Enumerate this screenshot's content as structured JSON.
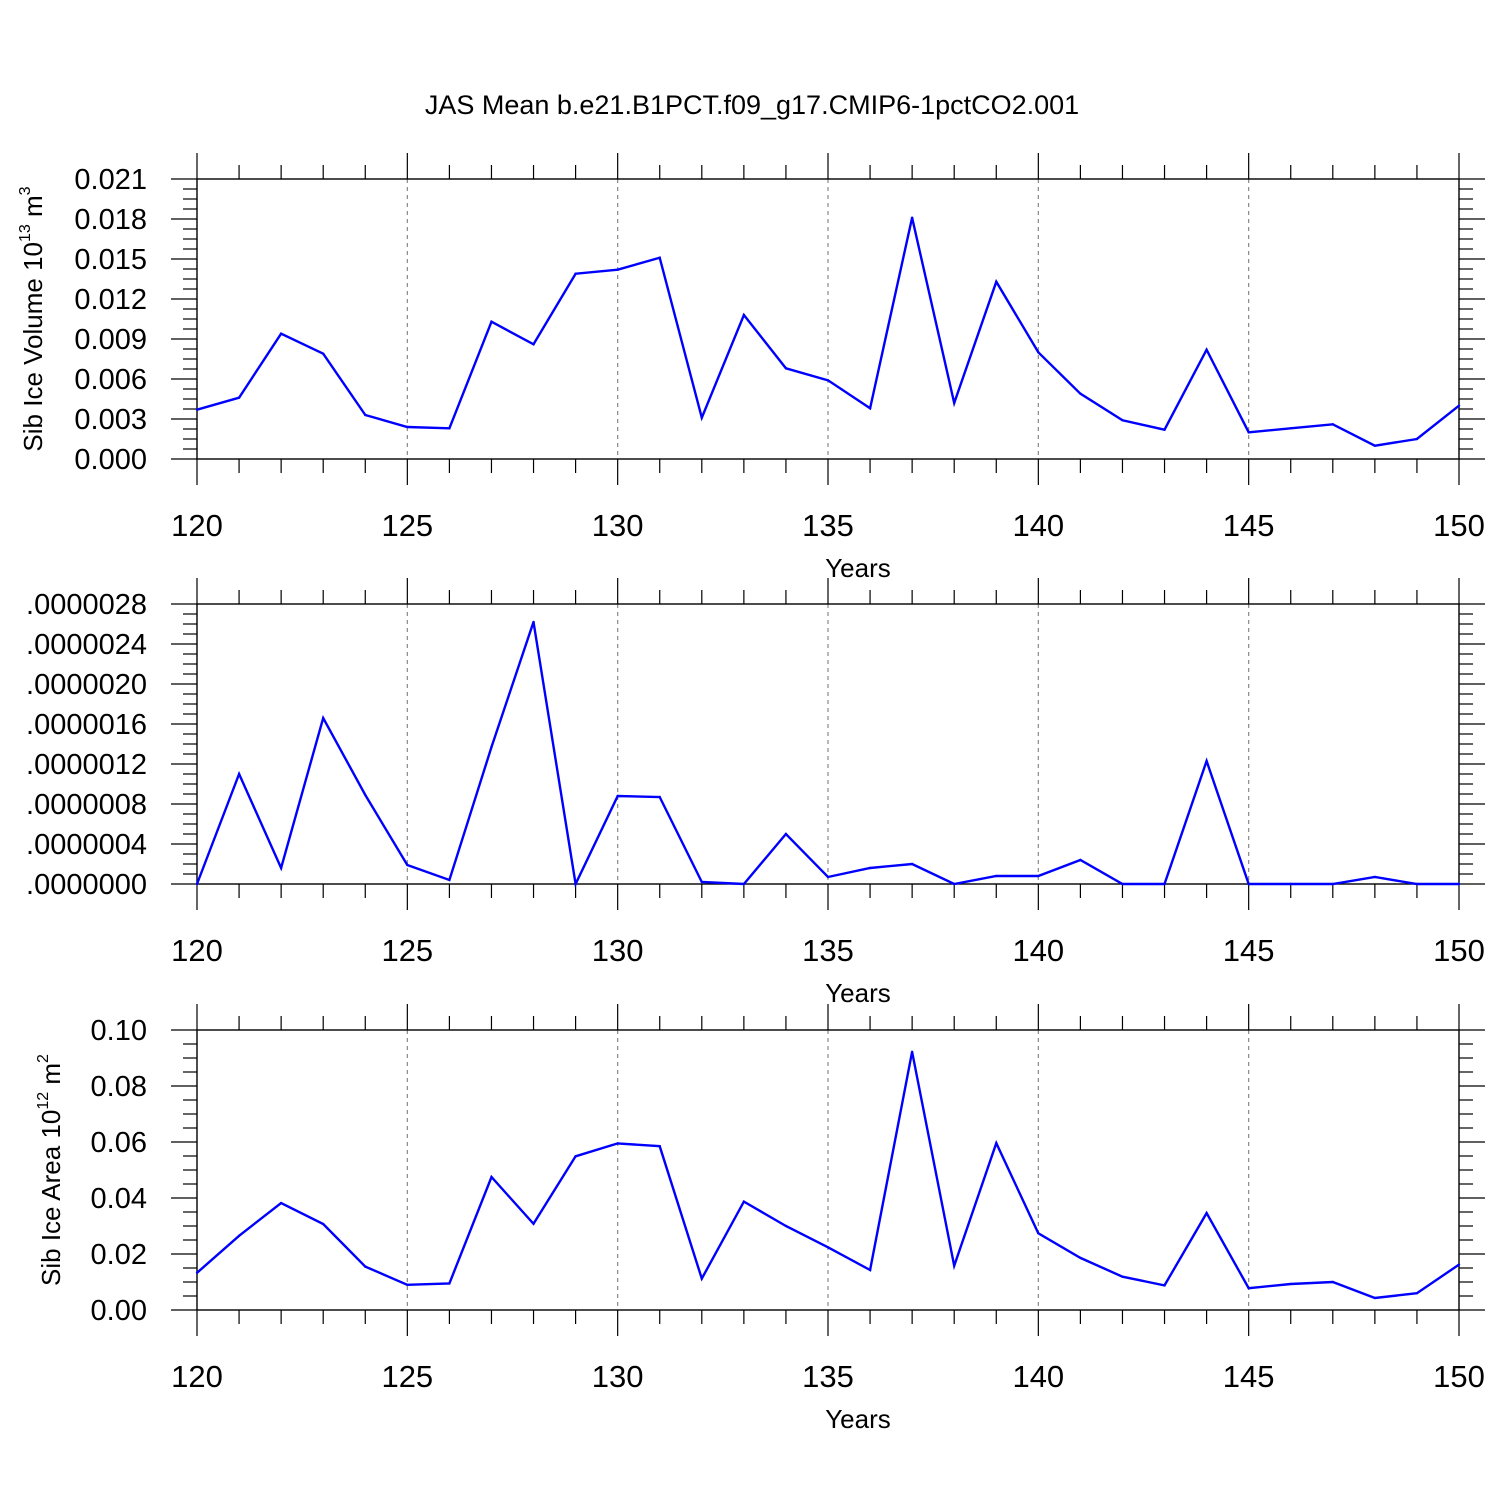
{
  "title": "JAS Mean b.e21.B1PCT.f09_g17.CMIP6-1pctCO2.001",
  "colors": {
    "series": "#0000ff",
    "axes": "#000000",
    "grid": "#888888"
  },
  "chart_data": [
    {
      "type": "line",
      "xlabel": "Years",
      "ylabel": {
        "text": "Sib Ice Volume 10",
        "sup1": "13",
        "unit": " m",
        "sup2": "3"
      },
      "xlim": [
        120,
        150
      ],
      "ylim": [
        0,
        0.021
      ],
      "xticks": [
        120,
        125,
        130,
        135,
        140,
        145,
        150
      ],
      "yticks": [
        0.0,
        0.003,
        0.006,
        0.009,
        0.012,
        0.015,
        0.018,
        0.021
      ],
      "ytick_labels": [
        "0.000",
        "0.003",
        "0.006",
        "0.009",
        "0.012",
        "0.015",
        "0.018",
        "0.021"
      ],
      "y_minor_step": 0.00075,
      "x": [
        120,
        121,
        122,
        123,
        124,
        125,
        126,
        127,
        128,
        129,
        130,
        131,
        132,
        133,
        134,
        135,
        136,
        137,
        138,
        139,
        140,
        141,
        142,
        143,
        144,
        145,
        146,
        147,
        148,
        149,
        150
      ],
      "y": [
        0.0037,
        0.0046,
        0.0094,
        0.0079,
        0.0033,
        0.0024,
        0.0023,
        0.0103,
        0.0086,
        0.0139,
        0.0142,
        0.0151,
        0.0031,
        0.0108,
        0.0068,
        0.0059,
        0.0038,
        0.0181,
        0.0042,
        0.0133,
        0.008,
        0.0049,
        0.0029,
        0.0022,
        0.0082,
        0.002,
        0.0023,
        0.0026,
        0.001,
        0.0015,
        0.004
      ]
    },
    {
      "type": "line",
      "xlabel": "Years",
      "xlim": [
        120,
        150
      ],
      "ylim": [
        0,
        2.8e-06
      ],
      "xticks": [
        120,
        125,
        130,
        135,
        140,
        145,
        150
      ],
      "yticks": [
        0.0,
        4e-07,
        8e-07,
        1.2e-06,
        1.6e-06,
        2e-06,
        2.4e-06,
        2.8e-06
      ],
      "ytick_labels": [
        ".0000000",
        ".0000004",
        ".0000008",
        ".0000012",
        ".0000016",
        ".0000020",
        ".0000024",
        ".0000028"
      ],
      "y_minor_step": 1e-07,
      "x": [
        120,
        121,
        122,
        123,
        124,
        125,
        126,
        127,
        128,
        129,
        130,
        131,
        132,
        133,
        134,
        135,
        136,
        137,
        138,
        139,
        140,
        141,
        142,
        143,
        144,
        145,
        146,
        147,
        148,
        149,
        150
      ],
      "y": [
        0.0,
        1.1e-06,
        1.6e-07,
        1.66e-06,
        8.9e-07,
        1.9e-07,
        4e-08,
        1.37e-06,
        2.62e-06,
        0.0,
        8.8e-07,
        8.7e-07,
        2e-08,
        0.0,
        5e-07,
        7e-08,
        1.6e-07,
        2e-07,
        0.0,
        8e-08,
        8e-08,
        2.4e-07,
        0.0,
        0.0,
        1.23e-06,
        0.0,
        0.0,
        0.0,
        7e-08,
        0.0,
        0.0
      ]
    },
    {
      "type": "line",
      "xlabel": "Years",
      "ylabel": {
        "text": "Sib Ice Area 10",
        "sup1": "12",
        "unit": " m",
        "sup2": "2"
      },
      "xlim": [
        120,
        150
      ],
      "ylim": [
        0,
        0.1
      ],
      "xticks": [
        120,
        125,
        130,
        135,
        140,
        145,
        150
      ],
      "yticks": [
        0.0,
        0.02,
        0.04,
        0.06,
        0.08,
        0.1
      ],
      "ytick_labels": [
        "0.00",
        "0.02",
        "0.04",
        "0.06",
        "0.08",
        "0.10"
      ],
      "y_minor_step": 0.005,
      "x": [
        120,
        121,
        122,
        123,
        124,
        125,
        126,
        127,
        128,
        129,
        130,
        131,
        132,
        133,
        134,
        135,
        136,
        137,
        138,
        139,
        140,
        141,
        142,
        143,
        144,
        145,
        146,
        147,
        148,
        149,
        150
      ],
      "y": [
        0.0133,
        0.0265,
        0.0382,
        0.0307,
        0.0155,
        0.009,
        0.0095,
        0.0475,
        0.0308,
        0.0549,
        0.0595,
        0.0585,
        0.0112,
        0.0387,
        0.03,
        0.0224,
        0.0143,
        0.0922,
        0.0158,
        0.0596,
        0.0274,
        0.0186,
        0.0119,
        0.0088,
        0.0346,
        0.0078,
        0.0093,
        0.01,
        0.0043,
        0.006,
        0.0162
      ]
    }
  ]
}
